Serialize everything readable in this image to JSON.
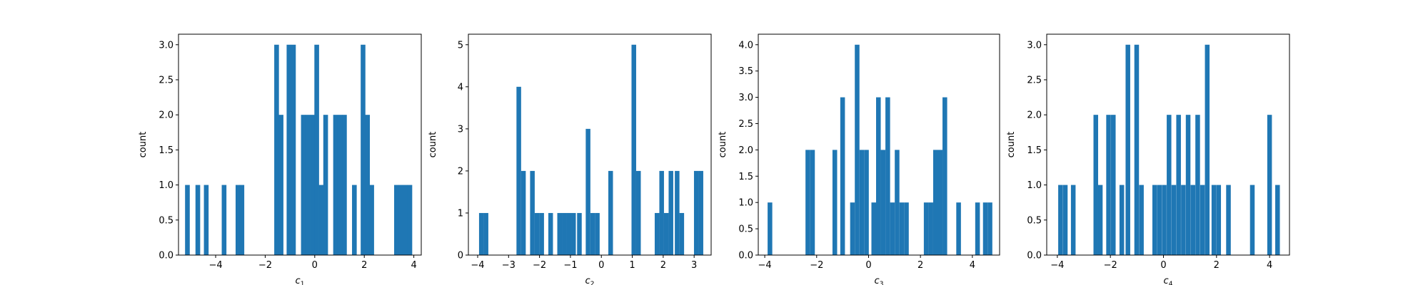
{
  "figure": {
    "background": "#ffffff",
    "bar_color": "#1f77b4"
  },
  "chart_data": [
    {
      "type": "bar",
      "xlabel": {
        "base": "c",
        "sub": "1"
      },
      "ylabel": "count",
      "xlim": [
        -5.5,
        4.3
      ],
      "ylim": [
        0,
        3.15
      ],
      "xticks": [
        -4,
        -2,
        0,
        2,
        4
      ],
      "yticks": [
        0.0,
        0.5,
        1.0,
        1.5,
        2.0,
        2.5,
        3.0
      ],
      "ytick_decimals": 1,
      "bin_width": 0.19,
      "bins": [
        {
          "x": -5.14,
          "count": 1
        },
        {
          "x": -4.72,
          "count": 1
        },
        {
          "x": -4.38,
          "count": 1
        },
        {
          "x": -3.66,
          "count": 1
        },
        {
          "x": -3.1,
          "count": 1
        },
        {
          "x": -2.94,
          "count": 1
        },
        {
          "x": -1.54,
          "count": 3
        },
        {
          "x": -1.36,
          "count": 2
        },
        {
          "x": -1.04,
          "count": 3
        },
        {
          "x": -0.86,
          "count": 3
        },
        {
          "x": -0.46,
          "count": 2
        },
        {
          "x": -0.28,
          "count": 2
        },
        {
          "x": -0.1,
          "count": 2
        },
        {
          "x": 0.08,
          "count": 3
        },
        {
          "x": 0.26,
          "count": 1
        },
        {
          "x": 0.44,
          "count": 2
        },
        {
          "x": 0.84,
          "count": 2
        },
        {
          "x": 1.02,
          "count": 2
        },
        {
          "x": 1.2,
          "count": 2
        },
        {
          "x": 1.6,
          "count": 1
        },
        {
          "x": 1.95,
          "count": 3
        },
        {
          "x": 2.13,
          "count": 2
        },
        {
          "x": 2.3,
          "count": 1
        },
        {
          "x": 3.3,
          "count": 1
        },
        {
          "x": 3.48,
          "count": 1
        },
        {
          "x": 3.66,
          "count": 1
        },
        {
          "x": 3.84,
          "count": 1
        }
      ]
    },
    {
      "type": "bar",
      "xlabel": {
        "base": "c",
        "sub": "2"
      },
      "ylabel": "count",
      "xlim": [
        -4.3,
        3.55
      ],
      "ylim": [
        0,
        5.25
      ],
      "xticks": [
        -4,
        -3,
        -2,
        -1,
        0,
        1,
        2,
        3
      ],
      "yticks": [
        0,
        1,
        2,
        3,
        4,
        5
      ],
      "ytick_decimals": 0,
      "bin_width": 0.15,
      "bins": [
        {
          "x": -3.88,
          "count": 1
        },
        {
          "x": -3.73,
          "count": 1
        },
        {
          "x": -2.67,
          "count": 4
        },
        {
          "x": -2.52,
          "count": 2
        },
        {
          "x": -2.23,
          "count": 2
        },
        {
          "x": -2.08,
          "count": 1
        },
        {
          "x": -1.93,
          "count": 1
        },
        {
          "x": -1.64,
          "count": 1
        },
        {
          "x": -1.35,
          "count": 1
        },
        {
          "x": -1.2,
          "count": 1
        },
        {
          "x": -1.05,
          "count": 1
        },
        {
          "x": -0.9,
          "count": 1
        },
        {
          "x": -0.71,
          "count": 1
        },
        {
          "x": -0.43,
          "count": 3
        },
        {
          "x": -0.28,
          "count": 1
        },
        {
          "x": -0.13,
          "count": 1
        },
        {
          "x": 0.3,
          "count": 2
        },
        {
          "x": 1.05,
          "count": 5
        },
        {
          "x": 1.2,
          "count": 2
        },
        {
          "x": 1.8,
          "count": 1
        },
        {
          "x": 1.95,
          "count": 2
        },
        {
          "x": 2.1,
          "count": 1
        },
        {
          "x": 2.25,
          "count": 2
        },
        {
          "x": 2.45,
          "count": 2
        },
        {
          "x": 2.6,
          "count": 1
        },
        {
          "x": 3.07,
          "count": 2
        },
        {
          "x": 3.22,
          "count": 2
        }
      ]
    },
    {
      "type": "bar",
      "xlabel": {
        "base": "c",
        "sub": "3"
      },
      "ylabel": "count",
      "xlim": [
        -4.25,
        5.05
      ],
      "ylim": [
        0,
        4.2
      ],
      "xticks": [
        -4,
        -2,
        0,
        2,
        4
      ],
      "yticks": [
        0.0,
        0.5,
        1.0,
        1.5,
        2.0,
        2.5,
        3.0,
        3.5,
        4.0
      ],
      "ytick_decimals": 1,
      "bin_width": 0.18,
      "bins": [
        {
          "x": -3.8,
          "count": 1
        },
        {
          "x": -2.34,
          "count": 2
        },
        {
          "x": -2.16,
          "count": 2
        },
        {
          "x": -1.3,
          "count": 2
        },
        {
          "x": -1.0,
          "count": 3
        },
        {
          "x": -0.62,
          "count": 1
        },
        {
          "x": -0.44,
          "count": 4
        },
        {
          "x": -0.26,
          "count": 2
        },
        {
          "x": -0.08,
          "count": 2
        },
        {
          "x": 0.2,
          "count": 1
        },
        {
          "x": 0.38,
          "count": 3
        },
        {
          "x": 0.56,
          "count": 2
        },
        {
          "x": 0.74,
          "count": 3
        },
        {
          "x": 0.92,
          "count": 1
        },
        {
          "x": 1.1,
          "count": 2
        },
        {
          "x": 1.28,
          "count": 1
        },
        {
          "x": 1.46,
          "count": 1
        },
        {
          "x": 2.22,
          "count": 1
        },
        {
          "x": 2.4,
          "count": 1
        },
        {
          "x": 2.58,
          "count": 2
        },
        {
          "x": 2.76,
          "count": 2
        },
        {
          "x": 2.94,
          "count": 3
        },
        {
          "x": 3.47,
          "count": 1
        },
        {
          "x": 4.2,
          "count": 1
        },
        {
          "x": 4.5,
          "count": 1
        },
        {
          "x": 4.68,
          "count": 1
        }
      ]
    },
    {
      "type": "bar",
      "xlabel": {
        "base": "c",
        "sub": "4"
      },
      "ylabel": "count",
      "xlim": [
        -4.4,
        4.75
      ],
      "ylim": [
        0,
        3.15
      ],
      "xticks": [
        -4,
        -2,
        0,
        2,
        4
      ],
      "yticks": [
        0.0,
        0.5,
        1.0,
        1.5,
        2.0,
        2.5,
        3.0
      ],
      "ytick_decimals": 1,
      "bin_width": 0.175,
      "bins": [
        {
          "x": -3.88,
          "count": 1
        },
        {
          "x": -3.7,
          "count": 1
        },
        {
          "x": -3.4,
          "count": 1
        },
        {
          "x": -2.55,
          "count": 2
        },
        {
          "x": -2.38,
          "count": 1
        },
        {
          "x": -2.07,
          "count": 2
        },
        {
          "x": -1.89,
          "count": 2
        },
        {
          "x": -1.57,
          "count": 1
        },
        {
          "x": -1.34,
          "count": 3
        },
        {
          "x": -1.01,
          "count": 3
        },
        {
          "x": -0.83,
          "count": 1
        },
        {
          "x": -0.33,
          "count": 1
        },
        {
          "x": -0.15,
          "count": 1
        },
        {
          "x": 0.03,
          "count": 1
        },
        {
          "x": 0.21,
          "count": 2
        },
        {
          "x": 0.39,
          "count": 1
        },
        {
          "x": 0.57,
          "count": 2
        },
        {
          "x": 0.75,
          "count": 1
        },
        {
          "x": 0.93,
          "count": 2
        },
        {
          "x": 1.11,
          "count": 1
        },
        {
          "x": 1.29,
          "count": 2
        },
        {
          "x": 1.47,
          "count": 1
        },
        {
          "x": 1.65,
          "count": 3
        },
        {
          "x": 1.9,
          "count": 1
        },
        {
          "x": 2.08,
          "count": 1
        },
        {
          "x": 2.45,
          "count": 1
        },
        {
          "x": 3.35,
          "count": 1
        },
        {
          "x": 4.0,
          "count": 2
        },
        {
          "x": 4.3,
          "count": 1
        }
      ]
    }
  ]
}
